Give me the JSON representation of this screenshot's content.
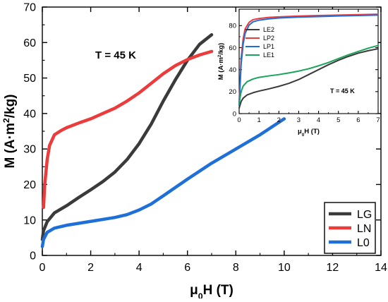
{
  "chart_data": [
    {
      "id": "main",
      "type": "line",
      "xlabel_main": "μ",
      "xlabel_sub": "0",
      "xlabel_tail": "H (T)",
      "ylabel_main": "M (A·m",
      "ylabel_sup": "2",
      "ylabel_tail": "/kg)",
      "xlim": [
        0,
        14
      ],
      "ylim": [
        0,
        70
      ],
      "xticks": [
        0,
        2,
        4,
        6,
        8,
        10,
        12,
        14
      ],
      "yticks": [
        0,
        10,
        20,
        30,
        40,
        50,
        60,
        70
      ],
      "annotation": "T = 45 K",
      "legend_position": "bottom-right",
      "series": [
        {
          "name": "LG",
          "color": "#3a3a3a",
          "x": [
            0,
            0.05,
            0.2,
            0.5,
            1,
            1.5,
            2,
            2.5,
            3,
            3.5,
            4,
            4.5,
            5,
            5.5,
            6,
            6.5,
            7
          ],
          "y": [
            4.5,
            7,
            9.5,
            12,
            14,
            16.3,
            18.5,
            20.8,
            23.5,
            27,
            31.5,
            37,
            43.5,
            49.5,
            55,
            59.5,
            62.2
          ]
        },
        {
          "name": "LN",
          "color": "#ec3b3b",
          "x": [
            0.05,
            0.1,
            0.2,
            0.3,
            0.5,
            0.8,
            1,
            1.5,
            2,
            2.5,
            3,
            3.5,
            4,
            4.5,
            5,
            5.5,
            6,
            6.5,
            7
          ],
          "y": [
            13.5,
            20,
            27,
            31,
            34,
            35.3,
            36,
            37.3,
            38.5,
            40,
            41.5,
            43.5,
            45.8,
            48.5,
            51.2,
            53.5,
            55.2,
            56.5,
            57.5
          ]
        },
        {
          "name": "L0",
          "color": "#1f6fd8",
          "x": [
            0,
            0.05,
            0.2,
            0.5,
            1,
            2,
            3,
            3.5,
            4,
            4.5,
            5,
            6,
            7,
            8,
            9,
            10
          ],
          "y": [
            2.5,
            4.5,
            6.5,
            7.7,
            8.5,
            9.6,
            10.7,
            11.5,
            12.8,
            14.5,
            16.8,
            21.5,
            26,
            30,
            34,
            38.5
          ]
        }
      ]
    },
    {
      "id": "inset",
      "type": "line",
      "xlabel_main": "μ",
      "xlabel_sub": "0",
      "xlabel_tail": "H (T)",
      "ylabel_main": "M (A·m",
      "ylabel_sup": "2",
      "ylabel_tail": "/kg)",
      "xlim": [
        0,
        7
      ],
      "ylim": [
        0,
        95
      ],
      "xticks": [
        0,
        1,
        2,
        3,
        4,
        5,
        6,
        7
      ],
      "yticks": [
        0,
        20,
        40,
        60,
        80
      ],
      "annotation": "T = 45 K",
      "legend_position": "top-left",
      "series": [
        {
          "name": "LE2",
          "color": "#3a3a3a",
          "x": [
            0,
            0.05,
            0.1,
            0.2,
            0.4,
            0.7,
            1,
            1.5,
            2,
            2.5,
            3,
            3.5,
            4,
            4.5,
            5,
            5.5,
            6,
            6.5,
            7
          ],
          "y": [
            5,
            8,
            11,
            14,
            17,
            19,
            20.5,
            22.5,
            24.8,
            27.5,
            31,
            35.5,
            40,
            44.5,
            48.5,
            52,
            55,
            57.2,
            59
          ]
        },
        {
          "name": "LP2",
          "color": "#ec3b3b",
          "x": [
            0,
            0.05,
            0.1,
            0.2,
            0.3,
            0.5,
            0.7,
            1,
            1.5,
            2,
            3,
            4,
            5,
            6,
            7
          ],
          "y": [
            10,
            30,
            50,
            68,
            77,
            83,
            85.5,
            86.5,
            87.5,
            88,
            88.7,
            89.2,
            89.6,
            90,
            90.4
          ]
        },
        {
          "name": "LP1",
          "color": "#1f6fd8",
          "x": [
            0,
            0.05,
            0.1,
            0.2,
            0.3,
            0.5,
            0.7,
            1,
            1.5,
            2,
            3,
            4,
            5,
            6,
            7
          ],
          "y": [
            8,
            26,
            45,
            63,
            73,
            80.5,
            83.5,
            85,
            86.2,
            87,
            87.8,
            88.3,
            88.8,
            89.2,
            89.6
          ]
        },
        {
          "name": "LE1",
          "color": "#1aa35a",
          "x": [
            0,
            0.05,
            0.1,
            0.2,
            0.4,
            0.7,
            1,
            1.5,
            2,
            2.5,
            3,
            3.5,
            4,
            4.5,
            5,
            5.5,
            6,
            6.5,
            7
          ],
          "y": [
            9,
            15,
            20,
            25,
            29,
            31.5,
            33,
            34.3,
            35.5,
            37,
            38.7,
            40.8,
            43.5,
            46.5,
            50,
            53.5,
            56.5,
            59.5,
            62
          ]
        }
      ]
    }
  ]
}
